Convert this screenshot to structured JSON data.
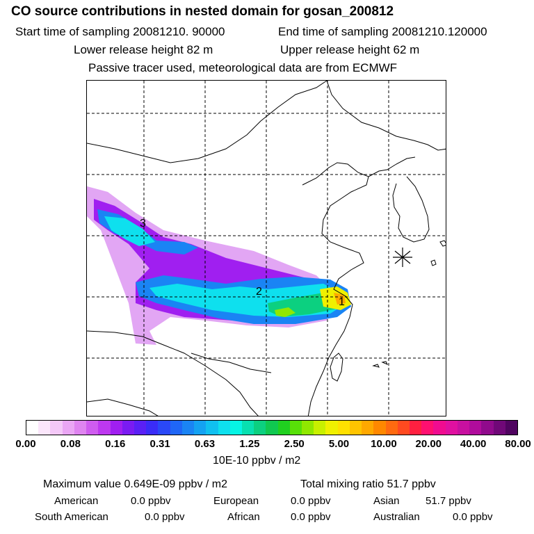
{
  "title": "CO  source contributions in nested domain for gosan_200812",
  "start_sampling": "Start time of sampling 20081210. 90000",
  "end_sampling": "End time of sampling 20081210.120000",
  "lower_release": "Lower release height   82 m",
  "upper_release": "Upper release height   62 m",
  "tracer_note": "Passive tracer used, meteorological data are from ECMWF",
  "map": {
    "labels": [
      "1",
      "2",
      "3"
    ],
    "receptor_icon": "asterisk-icon"
  },
  "colorbar": {
    "ticks": [
      "0.00",
      "0.08",
      "0.16",
      "0.31",
      "0.63",
      "1.25",
      "2.50",
      "5.00",
      "10.00",
      "20.00",
      "40.00",
      "80.00"
    ],
    "unit": "10E-10 ppbv / m2",
    "colors": [
      "#ffffff",
      "#fbe6fb",
      "#f4c8f8",
      "#eaa6f4",
      "#df84f0",
      "#cf5cef",
      "#bd38ef",
      "#a01ff0",
      "#7a1bf2",
      "#5a20f5",
      "#3a2cf7",
      "#2a48f8",
      "#1f66f6",
      "#1a84f4",
      "#14a2f2",
      "#10c0f0",
      "#0ee0ee",
      "#06f4e4",
      "#08e0b0",
      "#0cd080",
      "#10c850",
      "#20d020",
      "#58e008",
      "#90e800",
      "#c8f000",
      "#f0f000",
      "#ffe000",
      "#ffc400",
      "#ffa800",
      "#ff8800",
      "#ff6a10",
      "#ff4a20",
      "#ff2040",
      "#ff1070",
      "#f00c90",
      "#e010a0",
      "#c810a0",
      "#b00c9c",
      "#900a8c",
      "#700878",
      "#500460"
    ]
  },
  "stats": {
    "max_value": "Maximum value  0.649E-09 ppbv / m2",
    "total_mixing": "Total mixing ratio       51.7 ppbv",
    "american_label": "American",
    "american_value": "0.0 ppbv",
    "european_label": "European",
    "european_value": "0.0 ppbv",
    "asian_label": "Asian",
    "asian_value": "51.7 ppbv",
    "south_american_label": "South American",
    "south_american_value": "0.0 ppbv",
    "african_label": "African",
    "african_value": "0.0 ppbv",
    "australian_label": "Australian",
    "australian_value": "0.0 ppbv"
  }
}
